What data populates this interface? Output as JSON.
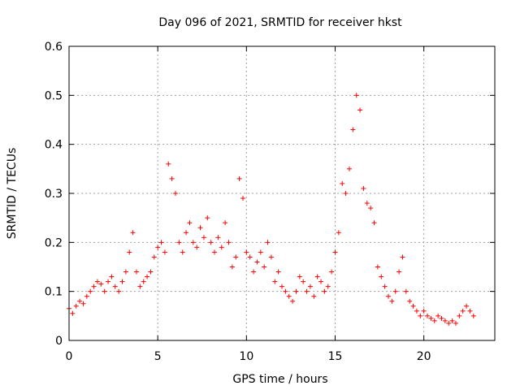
{
  "chart_data": {
    "type": "scatter",
    "title": "Day 096 of 2021, SRMTID for receiver hkst",
    "xlabel": "GPS time / hours",
    "ylabel": "SRMTID / TECUs",
    "xlim": [
      0,
      24
    ],
    "ylim": [
      0,
      0.6
    ],
    "xticks": [
      0,
      5,
      10,
      15,
      20
    ],
    "xtick_labels": [
      "0",
      "5",
      "10",
      "15",
      "20"
    ],
    "yticks": [
      0,
      0.1,
      0.2,
      0.3,
      0.4,
      0.5,
      0.6
    ],
    "ytick_labels": [
      "0",
      "0.1",
      "0.2",
      "0.3",
      "0.4",
      "0.5",
      "0.6"
    ],
    "grid": true,
    "marker": "plus",
    "color": "#ff0000",
    "series": [
      {
        "name": "SRMTID",
        "x": [
          0.0,
          0.2,
          0.4,
          0.6,
          0.8,
          1.0,
          1.2,
          1.4,
          1.6,
          1.8,
          2.0,
          2.2,
          2.4,
          2.6,
          2.8,
          3.0,
          3.2,
          3.4,
          3.6,
          3.8,
          4.0,
          4.2,
          4.4,
          4.6,
          4.8,
          5.0,
          5.2,
          5.4,
          5.6,
          5.8,
          6.0,
          6.2,
          6.4,
          6.6,
          6.8,
          7.0,
          7.2,
          7.4,
          7.6,
          7.8,
          8.0,
          8.2,
          8.4,
          8.6,
          8.8,
          9.0,
          9.2,
          9.4,
          9.6,
          9.8,
          10.0,
          10.2,
          10.4,
          10.6,
          10.8,
          11.0,
          11.2,
          11.4,
          11.6,
          11.8,
          12.0,
          12.2,
          12.4,
          12.6,
          12.8,
          13.0,
          13.2,
          13.4,
          13.6,
          13.8,
          14.0,
          14.2,
          14.4,
          14.6,
          14.8,
          15.0,
          15.2,
          15.4,
          15.6,
          15.8,
          16.0,
          16.2,
          16.4,
          16.6,
          16.8,
          17.0,
          17.2,
          17.4,
          17.6,
          17.8,
          18.0,
          18.2,
          18.4,
          18.6,
          18.8,
          19.0,
          19.2,
          19.4,
          19.6,
          19.8,
          20.0,
          20.2,
          20.4,
          20.6,
          20.8,
          21.0,
          21.2,
          21.4,
          21.6,
          21.8,
          22.0,
          22.2,
          22.4,
          22.6,
          22.8
        ],
        "y": [
          0.065,
          0.055,
          0.07,
          0.08,
          0.075,
          0.09,
          0.1,
          0.11,
          0.12,
          0.115,
          0.1,
          0.12,
          0.13,
          0.11,
          0.1,
          0.12,
          0.14,
          0.18,
          0.22,
          0.14,
          0.11,
          0.12,
          0.13,
          0.14,
          0.17,
          0.19,
          0.2,
          0.18,
          0.36,
          0.33,
          0.3,
          0.2,
          0.18,
          0.22,
          0.24,
          0.2,
          0.19,
          0.23,
          0.21,
          0.25,
          0.2,
          0.18,
          0.21,
          0.19,
          0.24,
          0.2,
          0.15,
          0.17,
          0.33,
          0.29,
          0.18,
          0.17,
          0.14,
          0.16,
          0.18,
          0.15,
          0.2,
          0.17,
          0.12,
          0.14,
          0.11,
          0.1,
          0.09,
          0.08,
          0.1,
          0.13,
          0.12,
          0.1,
          0.11,
          0.09,
          0.13,
          0.12,
          0.1,
          0.11,
          0.14,
          0.18,
          0.22,
          0.32,
          0.3,
          0.35,
          0.43,
          0.5,
          0.47,
          0.31,
          0.28,
          0.27,
          0.24,
          0.15,
          0.13,
          0.11,
          0.09,
          0.08,
          0.1,
          0.14,
          0.17,
          0.1,
          0.08,
          0.07,
          0.06,
          0.05,
          0.06,
          0.05,
          0.045,
          0.04,
          0.05,
          0.045,
          0.04,
          0.035,
          0.04,
          0.035,
          0.05,
          0.06,
          0.07,
          0.06,
          0.05
        ]
      }
    ]
  }
}
